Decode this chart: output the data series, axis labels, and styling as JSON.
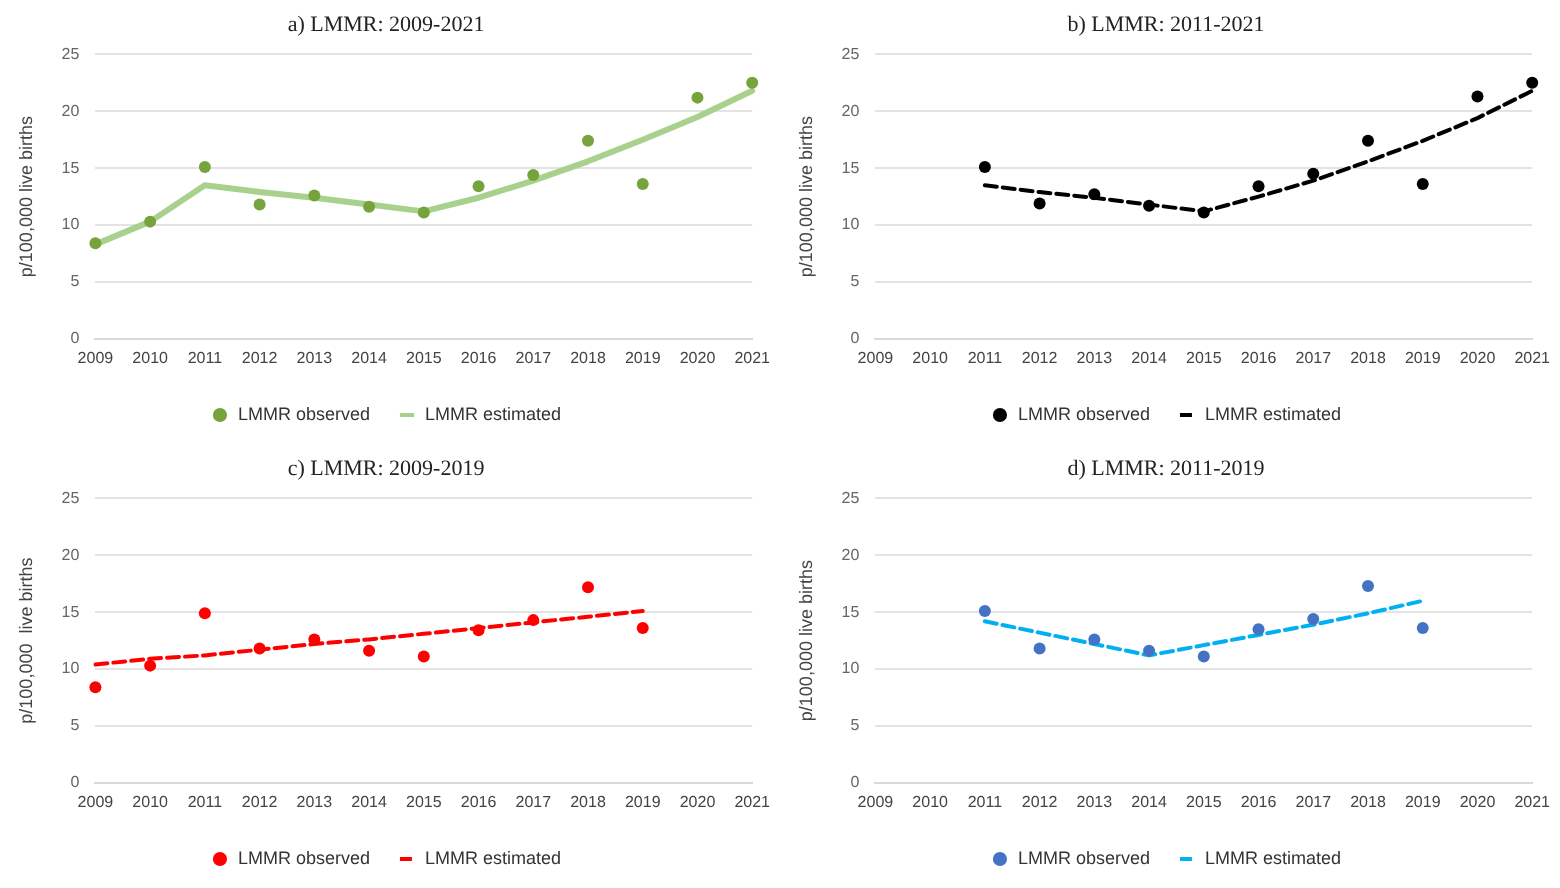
{
  "chart_data": [
    {
      "type": "line",
      "title": "a) LMMR: 2009-2021",
      "ylabel": "p/100,000 live births",
      "categories": [
        "2009",
        "2010",
        "2011",
        "2012",
        "2013",
        "2014",
        "2015",
        "2016",
        "2017",
        "2018",
        "2019",
        "2020",
        "2021"
      ],
      "ylim": [
        0,
        25
      ],
      "yticks": [
        0,
        5,
        10,
        15,
        20,
        25
      ],
      "grid": "y",
      "legend": "bottom",
      "series": [
        {
          "name": "LMMR observed",
          "type": "scatter",
          "marker": "circle",
          "color": "#77a33c",
          "values": [
            8.4,
            10.3,
            15.1,
            11.8,
            12.6,
            11.6,
            11.1,
            13.4,
            14.4,
            17.4,
            13.6,
            21.2,
            22.5
          ]
        },
        {
          "name": "LMMR estimated",
          "type": "line",
          "line_style": "solid",
          "color": "#a9d18e",
          "values": [
            8.3,
            10.3,
            13.5,
            12.9,
            12.4,
            11.8,
            11.2,
            12.4,
            13.9,
            15.6,
            17.5,
            19.5,
            21.8
          ]
        }
      ]
    },
    {
      "type": "line",
      "title": "b) LMMR: 2011-2021",
      "ylabel": "p/100,000 live births",
      "categories": [
        "2009",
        "2010",
        "2011",
        "2012",
        "2013",
        "2014",
        "2015",
        "2016",
        "2017",
        "2018",
        "2019",
        "2020",
        "2021"
      ],
      "ylim": [
        0,
        25
      ],
      "yticks": [
        0,
        5,
        10,
        15,
        20,
        25
      ],
      "grid": "y",
      "legend": "bottom",
      "series": [
        {
          "name": "LMMR observed",
          "type": "scatter",
          "marker": "circle",
          "color": "#000000",
          "values": [
            null,
            null,
            15.1,
            11.9,
            12.7,
            11.7,
            11.1,
            13.4,
            14.5,
            17.4,
            13.6,
            21.3,
            22.5
          ]
        },
        {
          "name": "LMMR estimated",
          "type": "line",
          "line_style": "dashed",
          "color": "#000000",
          "values": [
            null,
            null,
            13.5,
            12.9,
            12.4,
            11.8,
            11.2,
            12.5,
            13.9,
            15.6,
            17.4,
            19.4,
            21.8
          ]
        }
      ]
    },
    {
      "type": "line",
      "title": "c) LMMR: 2009-2019",
      "ylabel": "p/100,000  live births",
      "categories": [
        "2009",
        "2010",
        "2011",
        "2012",
        "2013",
        "2014",
        "2015",
        "2016",
        "2017",
        "2018",
        "2019",
        "2020",
        "2021"
      ],
      "ylim": [
        0,
        25
      ],
      "yticks": [
        0,
        5,
        10,
        15,
        20,
        25
      ],
      "grid": "y",
      "legend": "bottom",
      "series": [
        {
          "name": "LMMR observed",
          "type": "scatter",
          "marker": "circle",
          "color": "#ff0000",
          "values": [
            8.4,
            10.3,
            14.9,
            11.8,
            12.6,
            11.6,
            11.1,
            13.4,
            14.3,
            17.2,
            13.6,
            null,
            null
          ]
        },
        {
          "name": "LMMR estimated",
          "type": "line",
          "line_style": "dashed",
          "color": "#ff0000",
          "values": [
            10.4,
            10.9,
            11.2,
            11.7,
            12.2,
            12.6,
            13.1,
            13.6,
            14.1,
            14.6,
            15.1,
            null,
            null
          ]
        }
      ]
    },
    {
      "type": "line",
      "title": "d) LMMR: 2011-2019",
      "ylabel": "p/100,000 live births",
      "categories": [
        "2009",
        "2010",
        "2011",
        "2012",
        "2013",
        "2014",
        "2015",
        "2016",
        "2017",
        "2018",
        "2019",
        "2020",
        "2021"
      ],
      "ylim": [
        0,
        25
      ],
      "yticks": [
        0,
        5,
        10,
        15,
        20,
        25
      ],
      "grid": "y",
      "legend": "bottom",
      "series": [
        {
          "name": "LMMR observed",
          "type": "scatter",
          "marker": "circle",
          "color": "#4472c4",
          "values": [
            null,
            null,
            15.1,
            11.8,
            12.6,
            11.6,
            11.1,
            13.5,
            14.4,
            17.3,
            13.6,
            null,
            null
          ]
        },
        {
          "name": "LMMR estimated",
          "type": "line",
          "line_style": "dashed",
          "color": "#00b0f0",
          "values": [
            null,
            null,
            14.2,
            13.2,
            12.2,
            11.2,
            12.1,
            13.0,
            13.9,
            14.9,
            16.0,
            null,
            null
          ]
        }
      ]
    }
  ]
}
